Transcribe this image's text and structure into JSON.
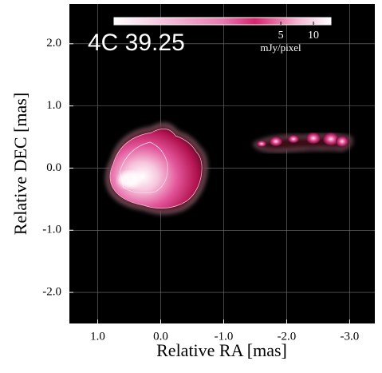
{
  "chart_data": {
    "type": "image",
    "title": "4C 39.25",
    "xlabel": "Relative RA [mas]",
    "ylabel": "Relative DEC [mas]",
    "xlim": [
      1.45,
      -3.4
    ],
    "ylim": [
      -2.5,
      2.64
    ],
    "xticks": [
      {
        "value": 1,
        "label": "1.0"
      },
      {
        "value": 0,
        "label": "0.0"
      },
      {
        "value": -1,
        "label": "-1.0"
      },
      {
        "value": -2,
        "label": "-2.0"
      },
      {
        "value": -3,
        "label": "-3.0"
      }
    ],
    "yticks": [
      {
        "value": 2,
        "label": "2.0"
      },
      {
        "value": 1,
        "label": "1.0"
      },
      {
        "value": 0,
        "label": "0.0"
      },
      {
        "value": -1,
        "label": "-1.0"
      },
      {
        "value": -2,
        "label": "-2.0"
      }
    ],
    "grid": true,
    "colorbar": {
      "label": "mJy/pixel",
      "log": true,
      "lim": [
        0.145,
        14.5
      ],
      "ticks": [
        5,
        10
      ]
    }
  }
}
